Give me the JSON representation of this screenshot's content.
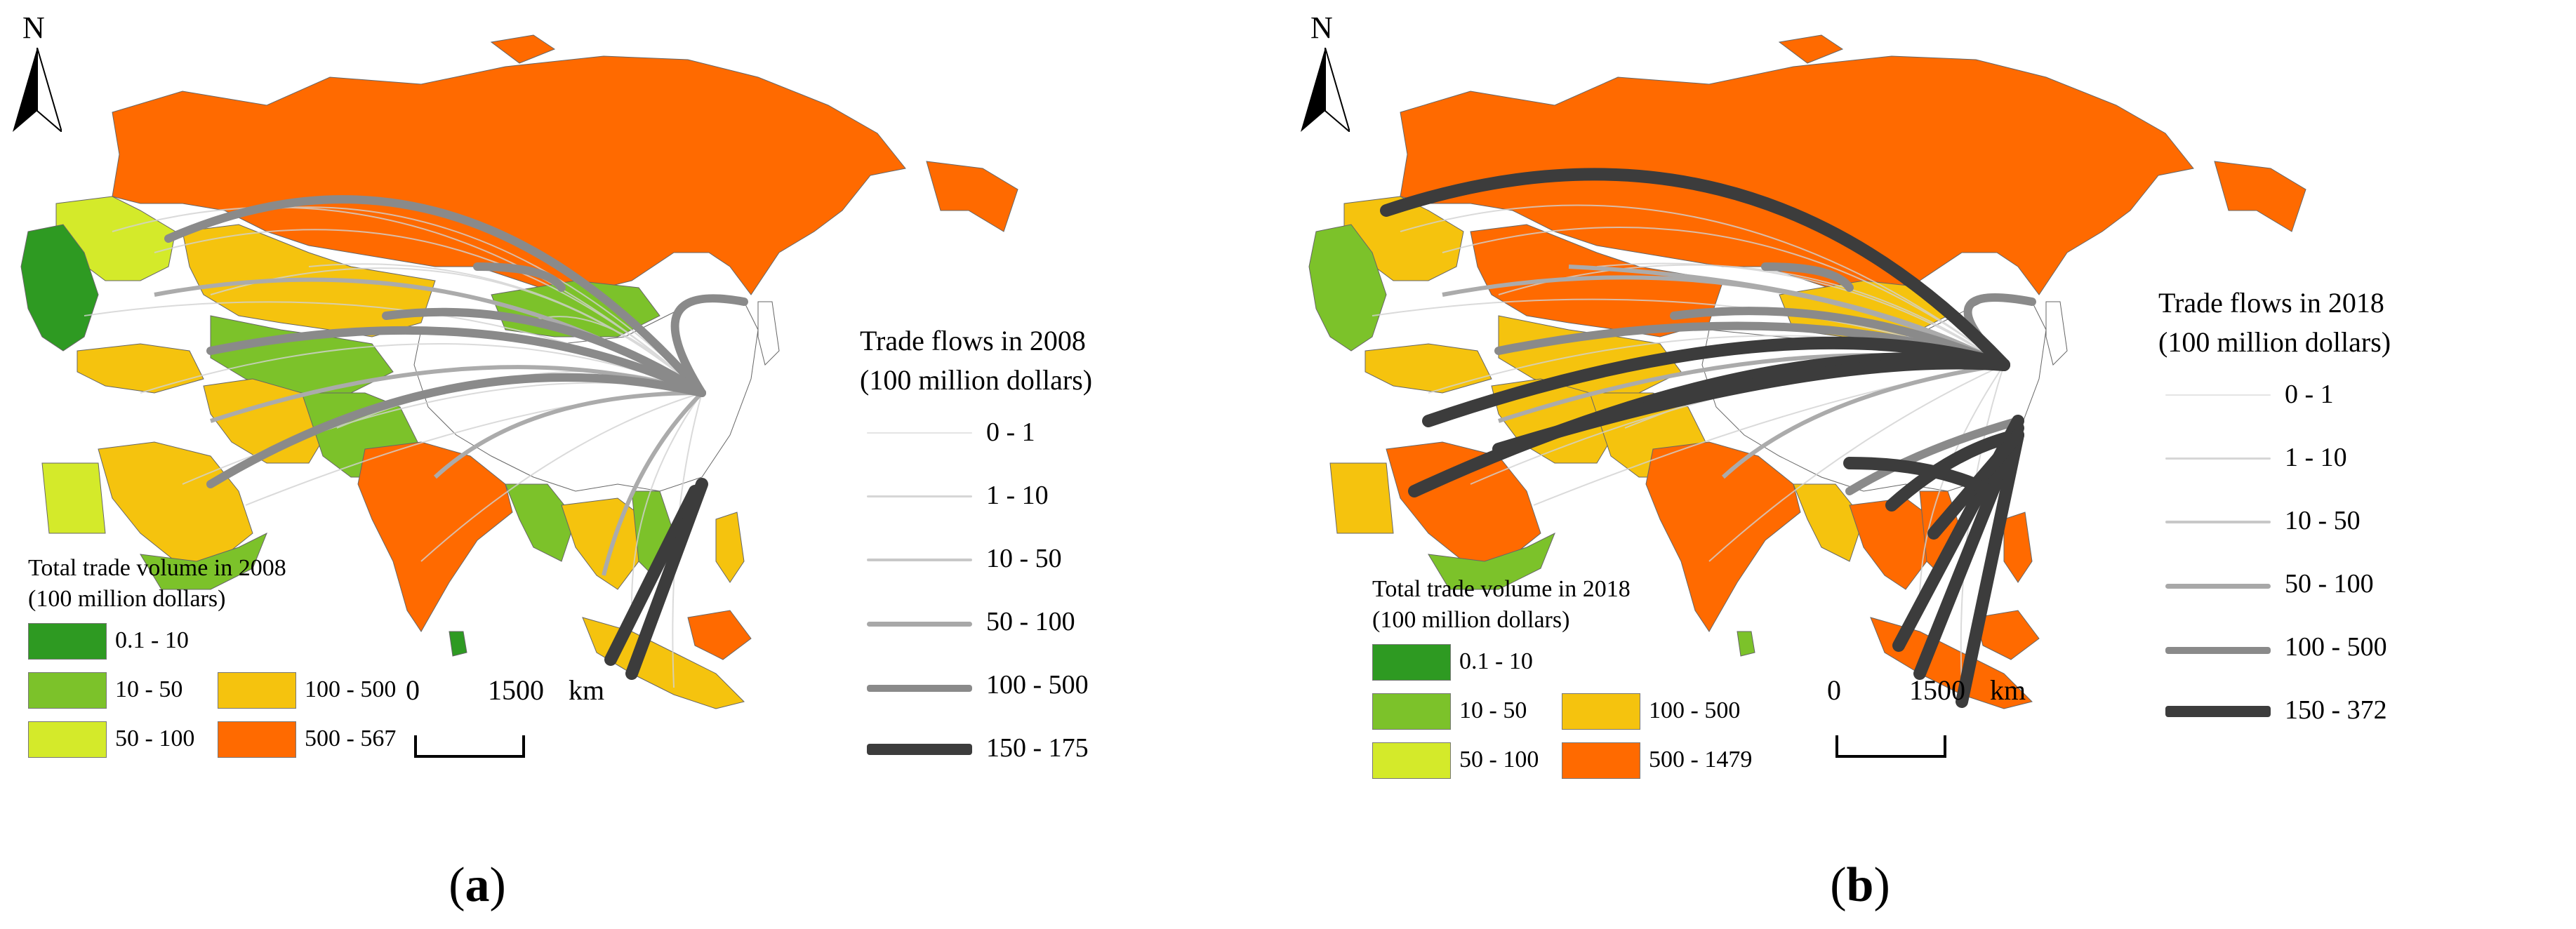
{
  "colors": {
    "class_0_1_10": "#2e9a22",
    "class_10_50": "#7cc22a",
    "class_50_100": "#d4ea2a",
    "class_100_500": "#f5c30e",
    "class_500_max": "#ff6a00",
    "nodata": "#ffffff",
    "flow_thin": "#d0d0d0",
    "flow_mid": "#b0b0b0",
    "flow_100_500": "#8c8c8c",
    "flow_top": "#3c3c3c"
  },
  "panels": [
    {
      "north_label": "N",
      "flow_legend": {
        "title_line1": "Trade flows in 2008",
        "title_line2": "(100 million dollars)",
        "items": [
          {
            "label": "0 - 1",
            "color": "#e4e4e4"
          },
          {
            "label": "1 - 10",
            "color": "#d6d6d6"
          },
          {
            "label": "10 - 50",
            "color": "#c8c8c8"
          },
          {
            "label": "50 - 100",
            "color": "#a8a8a8"
          },
          {
            "label": "100 - 500",
            "color": "#8a8a8a"
          },
          {
            "label": "150 - 175",
            "color": "#3c3c3c"
          }
        ]
      },
      "volume_legend": {
        "title_line1": "Total trade volume in 2008",
        "title_line2": "(100 million dollars)",
        "items": [
          {
            "label": "0.1 - 10",
            "color": "#2e9a22"
          },
          {
            "label": "10 - 50",
            "color": "#7cc22a"
          },
          {
            "label": "50 - 100",
            "color": "#d4ea2a"
          },
          {
            "label": "100 - 500",
            "color": "#f5c30e"
          },
          {
            "label": "500 - 567",
            "color": "#ff6a00"
          }
        ]
      },
      "scale": {
        "start": "0",
        "end": "1500",
        "unit": "km"
      },
      "caption_letter": "a"
    },
    {
      "north_label": "N",
      "flow_legend": {
        "title_line1": "Trade flows in 2018",
        "title_line2": "(100 million dollars)",
        "items": [
          {
            "label": "0 - 1",
            "color": "#e4e4e4"
          },
          {
            "label": "1 - 10",
            "color": "#d6d6d6"
          },
          {
            "label": "10 - 50",
            "color": "#c8c8c8"
          },
          {
            "label": "50 - 100",
            "color": "#a8a8a8"
          },
          {
            "label": "100 - 500",
            "color": "#8a8a8a"
          },
          {
            "label": "150 - 372",
            "color": "#3c3c3c"
          }
        ]
      },
      "volume_legend": {
        "title_line1": "Total trade volume in 2018",
        "title_line2": "(100 million dollars)",
        "items": [
          {
            "label": "0.1 - 10",
            "color": "#2e9a22"
          },
          {
            "label": "10 - 50",
            "color": "#7cc22a"
          },
          {
            "label": "50 - 100",
            "color": "#d4ea2a"
          },
          {
            "label": "100 - 500",
            "color": "#f5c30e"
          },
          {
            "label": "500 - 1479",
            "color": "#ff6a00"
          }
        ]
      },
      "scale": {
        "start": "0",
        "end": "1500",
        "unit": "km"
      },
      "caption_letter": "b"
    }
  ]
}
